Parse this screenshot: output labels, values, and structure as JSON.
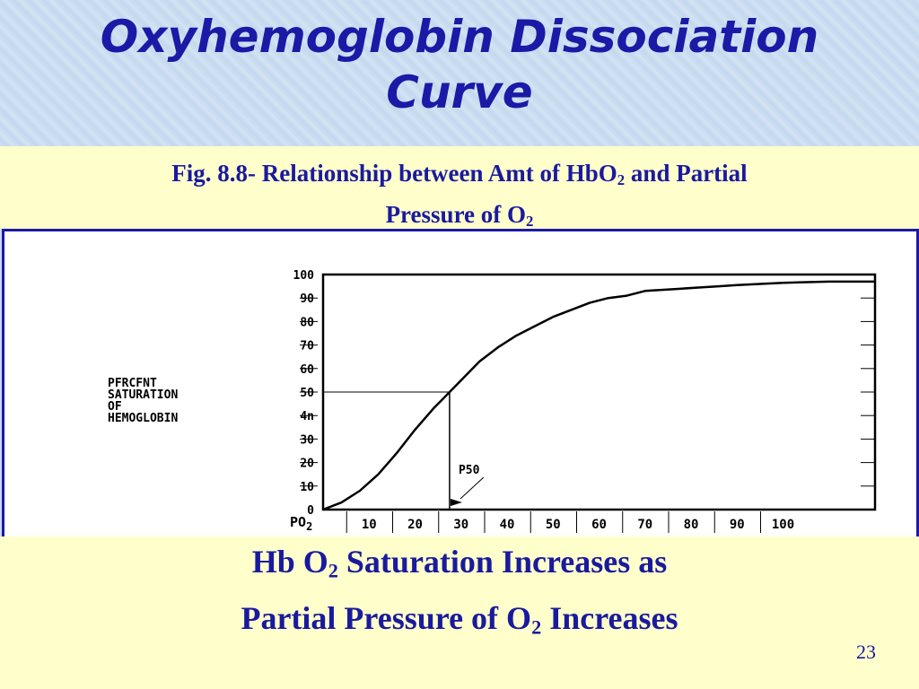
{
  "slide": {
    "title_line1": "Oxyhemoglobin Dissociation",
    "title_line2": "Curve",
    "caption": {
      "prefix": "Fig. 8.8- Relationship between Amt of HbO",
      "sub1": "2",
      "middle": " and Partial",
      "line2": "Pressure of O",
      "sub2": "2"
    },
    "footer": {
      "line1_a": "Hb O",
      "line1_sub": "2",
      "line1_b": " Saturation Increases as",
      "line2_a": "Partial Pressure of O",
      "line2_sub": "2",
      "line2_b": " Increases"
    },
    "slide_number": "23",
    "colors": {
      "title": "#1a1aa6",
      "text": "#1a1a9e",
      "band": "#ffffcc",
      "frame": "#1a1aa6"
    }
  },
  "chart_data": {
    "type": "line",
    "title": "",
    "ylabel_lines": [
      "PFRCFNT",
      "SATURATION",
      "OF",
      "HEMOGLOBIN"
    ],
    "xlabel": "PO",
    "xlabel_sub": "2",
    "xlim": [
      0,
      120
    ],
    "ylim": [
      0,
      100
    ],
    "y_ticks": [
      0,
      10,
      20,
      30,
      40,
      50,
      60,
      70,
      80,
      90,
      100
    ],
    "y_tick_labels": [
      "0",
      "10",
      "20",
      "30",
      "4n",
      "50",
      "60",
      "70",
      "80",
      "90",
      "100"
    ],
    "x_ticks": [
      10,
      20,
      30,
      40,
      50,
      60,
      70,
      80,
      90,
      100
    ],
    "grid": false,
    "series": [
      {
        "x": [
          0,
          4,
          8,
          12,
          16,
          20,
          24,
          26,
          28,
          30,
          34,
          38,
          42,
          46,
          50,
          54,
          58,
          62,
          66,
          70,
          74,
          78,
          82,
          86,
          90,
          95,
          100,
          110,
          120
        ],
        "y": [
          0,
          3,
          8,
          15,
          24,
          34,
          43,
          47,
          51,
          55,
          63,
          69,
          74,
          78,
          82,
          85,
          88,
          90,
          91,
          93,
          93.5,
          94,
          94.5,
          95,
          95.5,
          96,
          96.5,
          97,
          97
        ]
      }
    ],
    "annotations": [
      {
        "label": "P50",
        "x": 27.5,
        "y": 50
      }
    ]
  }
}
